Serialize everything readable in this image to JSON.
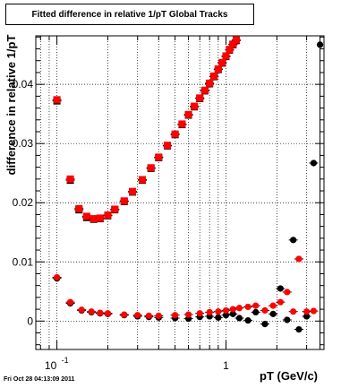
{
  "title": "Fitted difference in relative 1/pT  Global Tracks",
  "footer": "Fri Oct 28 04:13:09 2011",
  "chart_data": {
    "type": "scatter",
    "title": "Fitted difference in relative 1/pT  Global Tracks",
    "xlabel": "pT (GeV/c)",
    "ylabel": "difference in relative 1/pT",
    "xscale": "log",
    "xlim": [
      0.075,
      3.8
    ],
    "ylim": [
      -0.0048,
      0.0482
    ],
    "grid": true,
    "x_ticks": [
      {
        "value": 0.1,
        "base": "10",
        "exp": "-1"
      },
      {
        "value": 1,
        "label": "1"
      }
    ],
    "y_ticks": [
      {
        "value": 0,
        "label": "0"
      },
      {
        "value": 0.01,
        "label": "0.01"
      },
      {
        "value": 0.02,
        "label": "0.02"
      },
      {
        "value": 0.03,
        "label": "0.03"
      },
      {
        "value": 0.04,
        "label": "0.04"
      }
    ],
    "series": [
      {
        "marker": "square",
        "color": "#000000",
        "x": [
          0.1,
          0.12,
          0.135,
          0.15,
          0.165,
          0.18,
          0.2,
          0.22,
          0.25,
          0.28,
          0.32,
          0.36,
          0.4,
          0.45,
          0.5,
          0.55,
          0.6,
          0.65,
          0.7,
          0.75,
          0.8,
          0.85,
          0.9,
          0.95,
          1.0,
          1.05,
          1.1,
          1.15
        ],
        "y": [
          0.0372,
          0.0238,
          0.0188,
          0.0175,
          0.0172,
          0.0173,
          0.0178,
          0.0188,
          0.0202,
          0.0218,
          0.0238,
          0.0258,
          0.0276,
          0.0296,
          0.0315,
          0.0332,
          0.0348,
          0.0362,
          0.0376,
          0.0389,
          0.0401,
          0.0413,
          0.0425,
          0.0436,
          0.0447,
          0.0458,
          0.0467,
          0.0474
        ]
      },
      {
        "marker": "square",
        "color": "#ff0000",
        "x": [
          0.1,
          0.12,
          0.135,
          0.15,
          0.165,
          0.18,
          0.2,
          0.22,
          0.25,
          0.28,
          0.32,
          0.36,
          0.4,
          0.45,
          0.5,
          0.55,
          0.6,
          0.65,
          0.7,
          0.75,
          0.8,
          0.85,
          0.9,
          0.95,
          1.0,
          1.05,
          1.1,
          1.15
        ],
        "y": [
          0.0374,
          0.024,
          0.019,
          0.0177,
          0.0173,
          0.0174,
          0.0179,
          0.0189,
          0.0203,
          0.0219,
          0.0239,
          0.0259,
          0.0277,
          0.0297,
          0.0316,
          0.0333,
          0.0349,
          0.0363,
          0.0377,
          0.039,
          0.0402,
          0.0414,
          0.0426,
          0.0437,
          0.0448,
          0.0459,
          0.0468,
          0.0475
        ]
      },
      {
        "marker": "circle",
        "color": "#000000",
        "x": [
          0.1,
          0.12,
          0.14,
          0.16,
          0.18,
          0.2,
          0.25,
          0.3,
          0.35,
          0.4,
          0.5,
          0.6,
          0.7,
          0.8,
          0.9,
          1.0,
          1.1,
          1.2,
          1.35,
          1.5,
          1.7,
          1.9,
          2.1,
          2.3,
          2.5,
          2.7,
          3.0,
          3.3
        ],
        "y": [
          0.0072,
          0.003,
          0.0018,
          0.0015,
          0.0013,
          0.0012,
          0.001,
          0.0008,
          0.0007,
          0.0006,
          0.0005,
          0.0004,
          0.0007,
          0.0008,
          0.0006,
          0.001,
          0.0012,
          0.0005,
          0.0001,
          0.0015,
          -0.0005,
          0.0012,
          0.0055,
          0.0002,
          0.0137,
          -0.0014,
          0.0008,
          0.0267
        ]
      },
      {
        "marker": "circle",
        "color": "#ff0000",
        "x": [
          0.1,
          0.12,
          0.14,
          0.16,
          0.18,
          0.2,
          0.25,
          0.3,
          0.35,
          0.4,
          0.5,
          0.6,
          0.7,
          0.8,
          0.9,
          1.0,
          1.1,
          1.2,
          1.35,
          1.5,
          1.7,
          1.9,
          2.1,
          2.3,
          2.5,
          2.7,
          3.0,
          3.3
        ],
        "y": [
          0.0074,
          0.0032,
          0.0019,
          0.0016,
          0.0014,
          0.0013,
          0.0011,
          0.001,
          0.0009,
          0.0009,
          0.001,
          0.0011,
          0.0013,
          0.0015,
          0.0016,
          0.0018,
          0.002,
          0.0022,
          0.0024,
          0.0026,
          0.0018,
          0.0026,
          0.0032,
          0.0049,
          0.0016,
          0.0105,
          0.0016,
          0.0017
        ]
      }
    ],
    "outlier_point": {
      "marker": "circle",
      "color": "#000000",
      "x": 3.6,
      "y": 0.0467
    }
  }
}
